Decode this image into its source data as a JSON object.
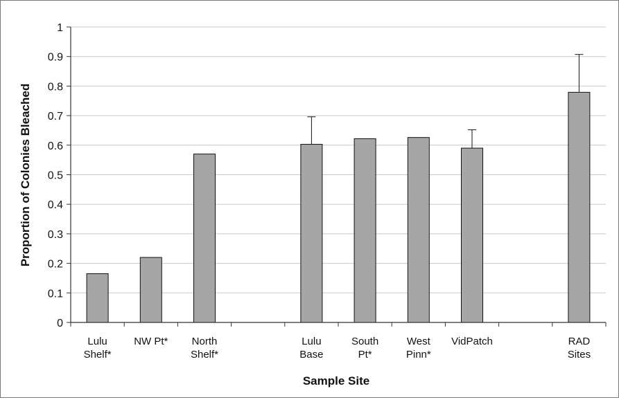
{
  "chart_data": {
    "type": "bar",
    "title": "",
    "xlabel": "Sample Site",
    "ylabel": "Proportion of Colonies Bleached",
    "ylim": [
      0,
      1
    ],
    "yticks": [
      "0",
      "0.1",
      "0.2",
      "0.3",
      "0.4",
      "0.5",
      "0.6",
      "0.7",
      "0.8",
      "0.9",
      "1"
    ],
    "grid": true,
    "legend": "none",
    "bar_color": "#a6a6a6",
    "categories": [
      [
        "Lulu",
        "Shelf*"
      ],
      [
        "NW Pt*"
      ],
      [
        "North",
        "Shelf*"
      ],
      [],
      [
        "Lulu",
        "Base"
      ],
      [
        "South",
        "Pt*"
      ],
      [
        "West",
        "Pinn*"
      ],
      [
        "VidPatch"
      ],
      [],
      [
        "RAD",
        "Sites"
      ]
    ],
    "values": [
      0.165,
      0.22,
      0.57,
      null,
      0.603,
      0.622,
      0.626,
      0.59,
      null,
      0.779
    ],
    "error_upper": [
      null,
      null,
      null,
      null,
      0.093,
      null,
      null,
      0.062,
      null,
      0.128
    ]
  }
}
